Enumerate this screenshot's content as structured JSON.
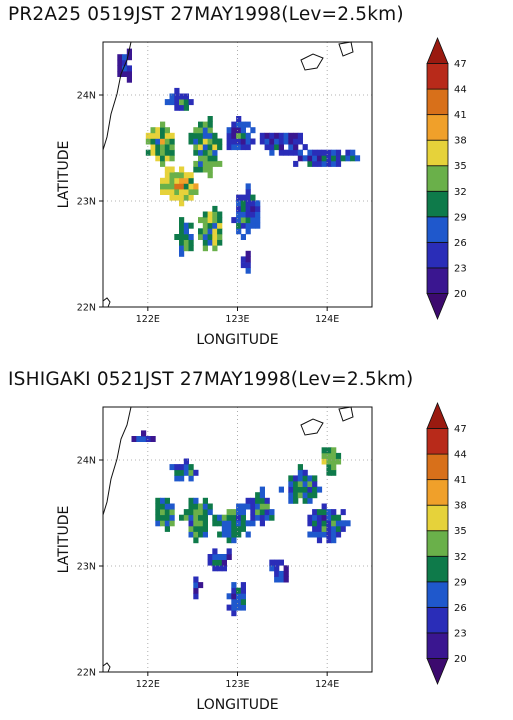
{
  "colorbar": {
    "levels": [
      "20",
      "23",
      "26",
      "29",
      "32",
      "35",
      "38",
      "41",
      "44",
      "47"
    ],
    "colors": [
      "#3c0a6e",
      "#3a1690",
      "#2a2db8",
      "#1f58cc",
      "#0e7a4a",
      "#6ab04a",
      "#e6d23a",
      "#f0a02a",
      "#d8701a",
      "#b82a1a",
      "#9a1a10"
    ]
  },
  "panels": [
    {
      "title": "PR2A25  0519JST  27MAY1998(Lev=2.5km)",
      "xlabel": "LONGITUDE",
      "ylabel": "LATITUDE",
      "xticks": [
        "122E",
        "123E",
        "124E"
      ],
      "yticks": [
        "22N",
        "23N",
        "24N"
      ]
    },
    {
      "title": "ISHIGAKI  0521JST  27MAY1998(Lev=2.5km)",
      "xlabel": "LONGITUDE",
      "ylabel": "LATITUDE",
      "xticks": [
        "122E",
        "123E",
        "124E"
      ],
      "yticks": [
        "22N",
        "23N",
        "24N"
      ]
    }
  ],
  "chart_data": [
    {
      "type": "heatmap",
      "title": "PR2A25  0519JST  27MAY1998(Lev=2.5km)",
      "xlabel": "LONGITUDE",
      "ylabel": "LATITUDE",
      "xlim": [
        121.5,
        124.5
      ],
      "ylim": [
        22.0,
        24.5
      ],
      "z_levels": [
        20,
        23,
        26,
        29,
        32,
        35,
        38,
        41,
        44,
        47
      ],
      "z_unit": "",
      "grid": "dotted",
      "regions": [
        {
          "lon": 121.75,
          "lat": 24.3,
          "rlon": 0.1,
          "rlat": 0.18,
          "val": 22
        },
        {
          "lon": 122.35,
          "lat": 23.95,
          "rlon": 0.15,
          "rlat": 0.1,
          "val": 27
        },
        {
          "lon": 122.15,
          "lat": 23.55,
          "rlon": 0.18,
          "rlat": 0.22,
          "val": 33
        },
        {
          "lon": 122.35,
          "lat": 23.15,
          "rlon": 0.25,
          "rlat": 0.18,
          "val": 35
        },
        {
          "lon": 122.65,
          "lat": 23.5,
          "rlon": 0.18,
          "rlat": 0.3,
          "val": 31
        },
        {
          "lon": 123.0,
          "lat": 23.6,
          "rlon": 0.18,
          "rlat": 0.18,
          "val": 26
        },
        {
          "lon": 123.5,
          "lat": 23.55,
          "rlon": 0.3,
          "rlat": 0.12,
          "val": 24
        },
        {
          "lon": 124.0,
          "lat": 23.4,
          "rlon": 0.45,
          "rlat": 0.08,
          "val": 26
        },
        {
          "lon": 122.4,
          "lat": 22.65,
          "rlon": 0.12,
          "rlat": 0.2,
          "val": 30
        },
        {
          "lon": 122.7,
          "lat": 22.75,
          "rlon": 0.14,
          "rlat": 0.22,
          "val": 32
        },
        {
          "lon": 123.1,
          "lat": 22.9,
          "rlon": 0.15,
          "rlat": 0.25,
          "val": 27
        },
        {
          "lon": 123.1,
          "lat": 22.4,
          "rlon": 0.05,
          "rlat": 0.15,
          "val": 24
        }
      ]
    },
    {
      "type": "heatmap",
      "title": "ISHIGAKI  0521JST  27MAY1998(Lev=2.5km)",
      "xlabel": "LONGITUDE",
      "ylabel": "LATITUDE",
      "xlim": [
        121.5,
        124.5
      ],
      "ylim": [
        22.0,
        24.5
      ],
      "z_levels": [
        20,
        23,
        26,
        29,
        32,
        35,
        38,
        41,
        44,
        47
      ],
      "z_unit": "",
      "grid": "dotted",
      "regions": [
        {
          "lon": 121.95,
          "lat": 24.2,
          "rlon": 0.12,
          "rlat": 0.06,
          "val": 22
        },
        {
          "lon": 122.4,
          "lat": 23.9,
          "rlon": 0.18,
          "rlat": 0.1,
          "val": 27
        },
        {
          "lon": 122.2,
          "lat": 23.5,
          "rlon": 0.15,
          "rlat": 0.18,
          "val": 30
        },
        {
          "lon": 122.55,
          "lat": 23.45,
          "rlon": 0.18,
          "rlat": 0.22,
          "val": 29
        },
        {
          "lon": 122.95,
          "lat": 23.4,
          "rlon": 0.22,
          "rlat": 0.18,
          "val": 29
        },
        {
          "lon": 123.25,
          "lat": 23.55,
          "rlon": 0.18,
          "rlat": 0.18,
          "val": 27
        },
        {
          "lon": 123.7,
          "lat": 23.75,
          "rlon": 0.22,
          "rlat": 0.2,
          "val": 28
        },
        {
          "lon": 124.0,
          "lat": 23.4,
          "rlon": 0.25,
          "rlat": 0.18,
          "val": 27
        },
        {
          "lon": 124.05,
          "lat": 24.0,
          "rlon": 0.12,
          "rlat": 0.14,
          "val": 33
        },
        {
          "lon": 122.8,
          "lat": 23.05,
          "rlon": 0.15,
          "rlat": 0.12,
          "val": 25
        },
        {
          "lon": 122.55,
          "lat": 22.8,
          "rlon": 0.05,
          "rlat": 0.12,
          "val": 23
        },
        {
          "lon": 123.0,
          "lat": 22.7,
          "rlon": 0.12,
          "rlat": 0.15,
          "val": 27
        },
        {
          "lon": 123.45,
          "lat": 22.95,
          "rlon": 0.12,
          "rlat": 0.12,
          "val": 23
        }
      ]
    }
  ]
}
